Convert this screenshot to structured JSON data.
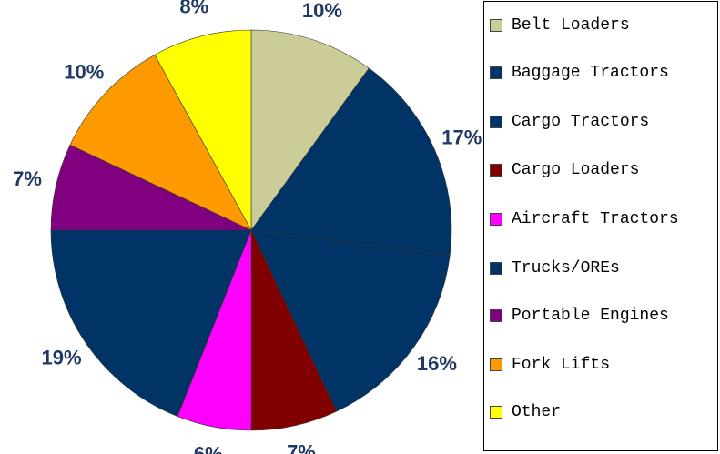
{
  "chart_data": {
    "type": "pie",
    "categories": [
      "Belt Loaders",
      "Baggage Tractors",
      "Cargo Tractors",
      "Cargo Loaders",
      "Aircraft Tractors",
      "Trucks/OREs",
      "Portable Engines",
      "Fork Lifts",
      "Other"
    ],
    "values": [
      10,
      17,
      16,
      7,
      6,
      19,
      7,
      10,
      8
    ],
    "value_labels": [
      "10%",
      "17%",
      "16%",
      "7%",
      "6%",
      "19%",
      "7%",
      "10%",
      "8%"
    ],
    "colors": [
      "#cccc99",
      "#003366",
      "#003366",
      "#800000",
      "#ff00ff",
      "#003366",
      "#800080",
      "#ff9900",
      "#ffff00"
    ]
  }
}
